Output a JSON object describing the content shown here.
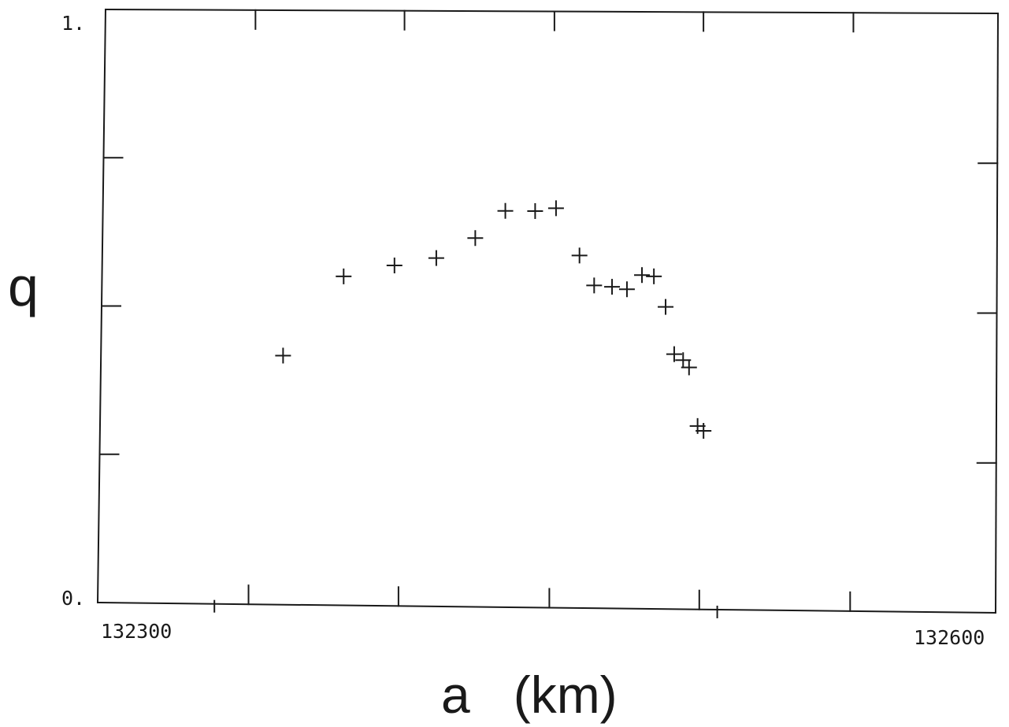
{
  "chart_data": {
    "type": "scatter",
    "title": "",
    "xlabel": "a   (km)",
    "ylabel": "q",
    "xlim": [
      132300,
      132600
    ],
    "ylim": [
      0,
      1
    ],
    "x_tick_labels": [
      "132300",
      "132600"
    ],
    "y_tick_labels": [
      "0.",
      "1."
    ],
    "marker": "plus",
    "grid": false,
    "legend": "none",
    "series": [
      {
        "points": [
          [
            132361,
            0.419
          ],
          [
            132381,
            0.553
          ],
          [
            132398,
            0.572
          ],
          [
            132412,
            0.585
          ],
          [
            132425,
            0.619
          ],
          [
            132435,
            0.665
          ],
          [
            132445,
            0.665
          ],
          [
            132452,
            0.67
          ],
          [
            132460,
            0.591
          ],
          [
            132465,
            0.541
          ],
          [
            132471,
            0.539
          ],
          [
            132476,
            0.535
          ],
          [
            132481,
            0.559
          ],
          [
            132485,
            0.557
          ],
          [
            132489,
            0.506
          ],
          [
            132492,
            0.427
          ],
          [
            132495,
            0.417
          ],
          [
            132497,
            0.405
          ],
          [
            132500,
            0.307
          ],
          [
            132502,
            0.299
          ]
        ]
      }
    ]
  },
  "colors": {
    "ink": "#1a1a1a",
    "background": "#ffffff"
  }
}
